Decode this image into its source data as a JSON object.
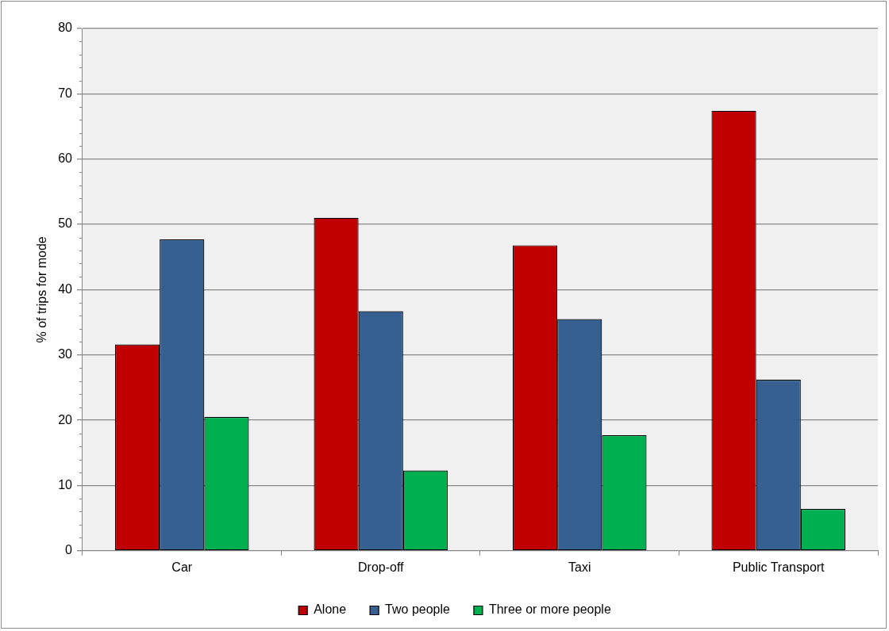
{
  "chart_data": {
    "type": "bar",
    "ylabel": "% of trips for mode",
    "categories": [
      "Car",
      "Drop-off",
      "Taxi",
      "Public Transport"
    ],
    "series": [
      {
        "name": "Alone",
        "color": "#c00000",
        "values": [
          31.6,
          51.0,
          46.8,
          67.4
        ]
      },
      {
        "name": "Two people",
        "color": "#376092",
        "values": [
          47.7,
          36.7,
          35.5,
          26.2
        ]
      },
      {
        "name": "Three or more people",
        "color": "#00b050",
        "values": [
          20.5,
          12.3,
          17.7,
          6.4
        ]
      }
    ],
    "ylim": [
      0,
      80
    ],
    "yticks": [
      0,
      10,
      20,
      30,
      40,
      50,
      60,
      70,
      80
    ],
    "grid": "y",
    "legend": "bottom"
  }
}
